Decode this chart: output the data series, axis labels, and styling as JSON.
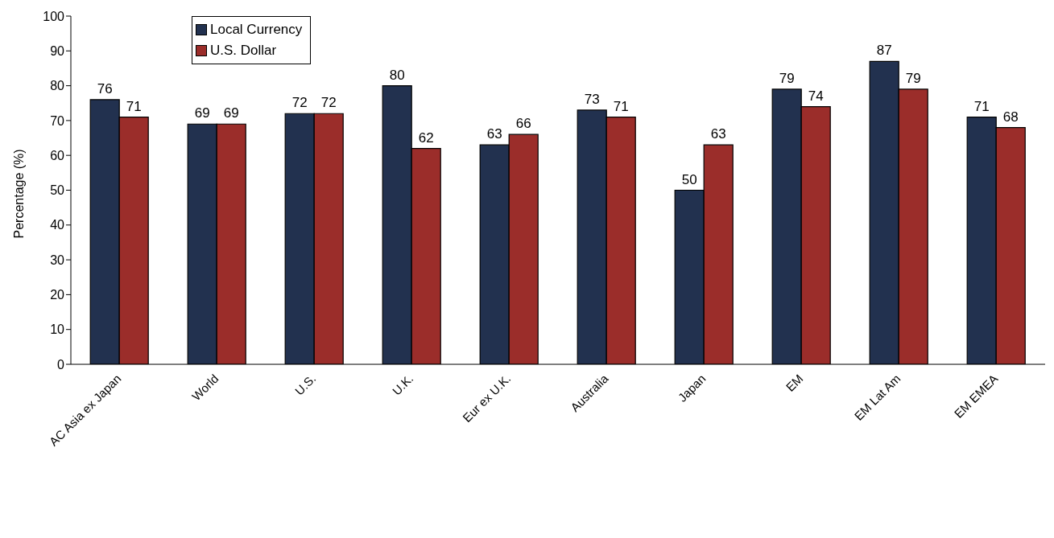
{
  "chart_data": {
    "type": "bar",
    "ylabel": "Percentage (%)",
    "categories": [
      "AC Asia ex Japan",
      "World",
      "U.S.",
      "U.K.",
      "Eur ex U.K.",
      "Australia",
      "Japan",
      "EM",
      "EM Lat Am",
      "EM EMEA"
    ],
    "series": [
      {
        "name": "Local Currency",
        "color": "#22314f",
        "values": [
          76,
          69,
          72,
          80,
          63,
          73,
          50,
          79,
          87,
          71
        ]
      },
      {
        "name": "U.S. Dollar",
        "color": "#9b2d2a",
        "values": [
          71,
          69,
          72,
          62,
          66,
          71,
          63,
          74,
          79,
          68
        ]
      }
    ],
    "ylim": [
      0,
      100
    ],
    "yticks": [
      0,
      10,
      20,
      30,
      40,
      50,
      60,
      70,
      80,
      90,
      100
    ],
    "grid": false,
    "legend": "top left",
    "data_labels": true
  }
}
